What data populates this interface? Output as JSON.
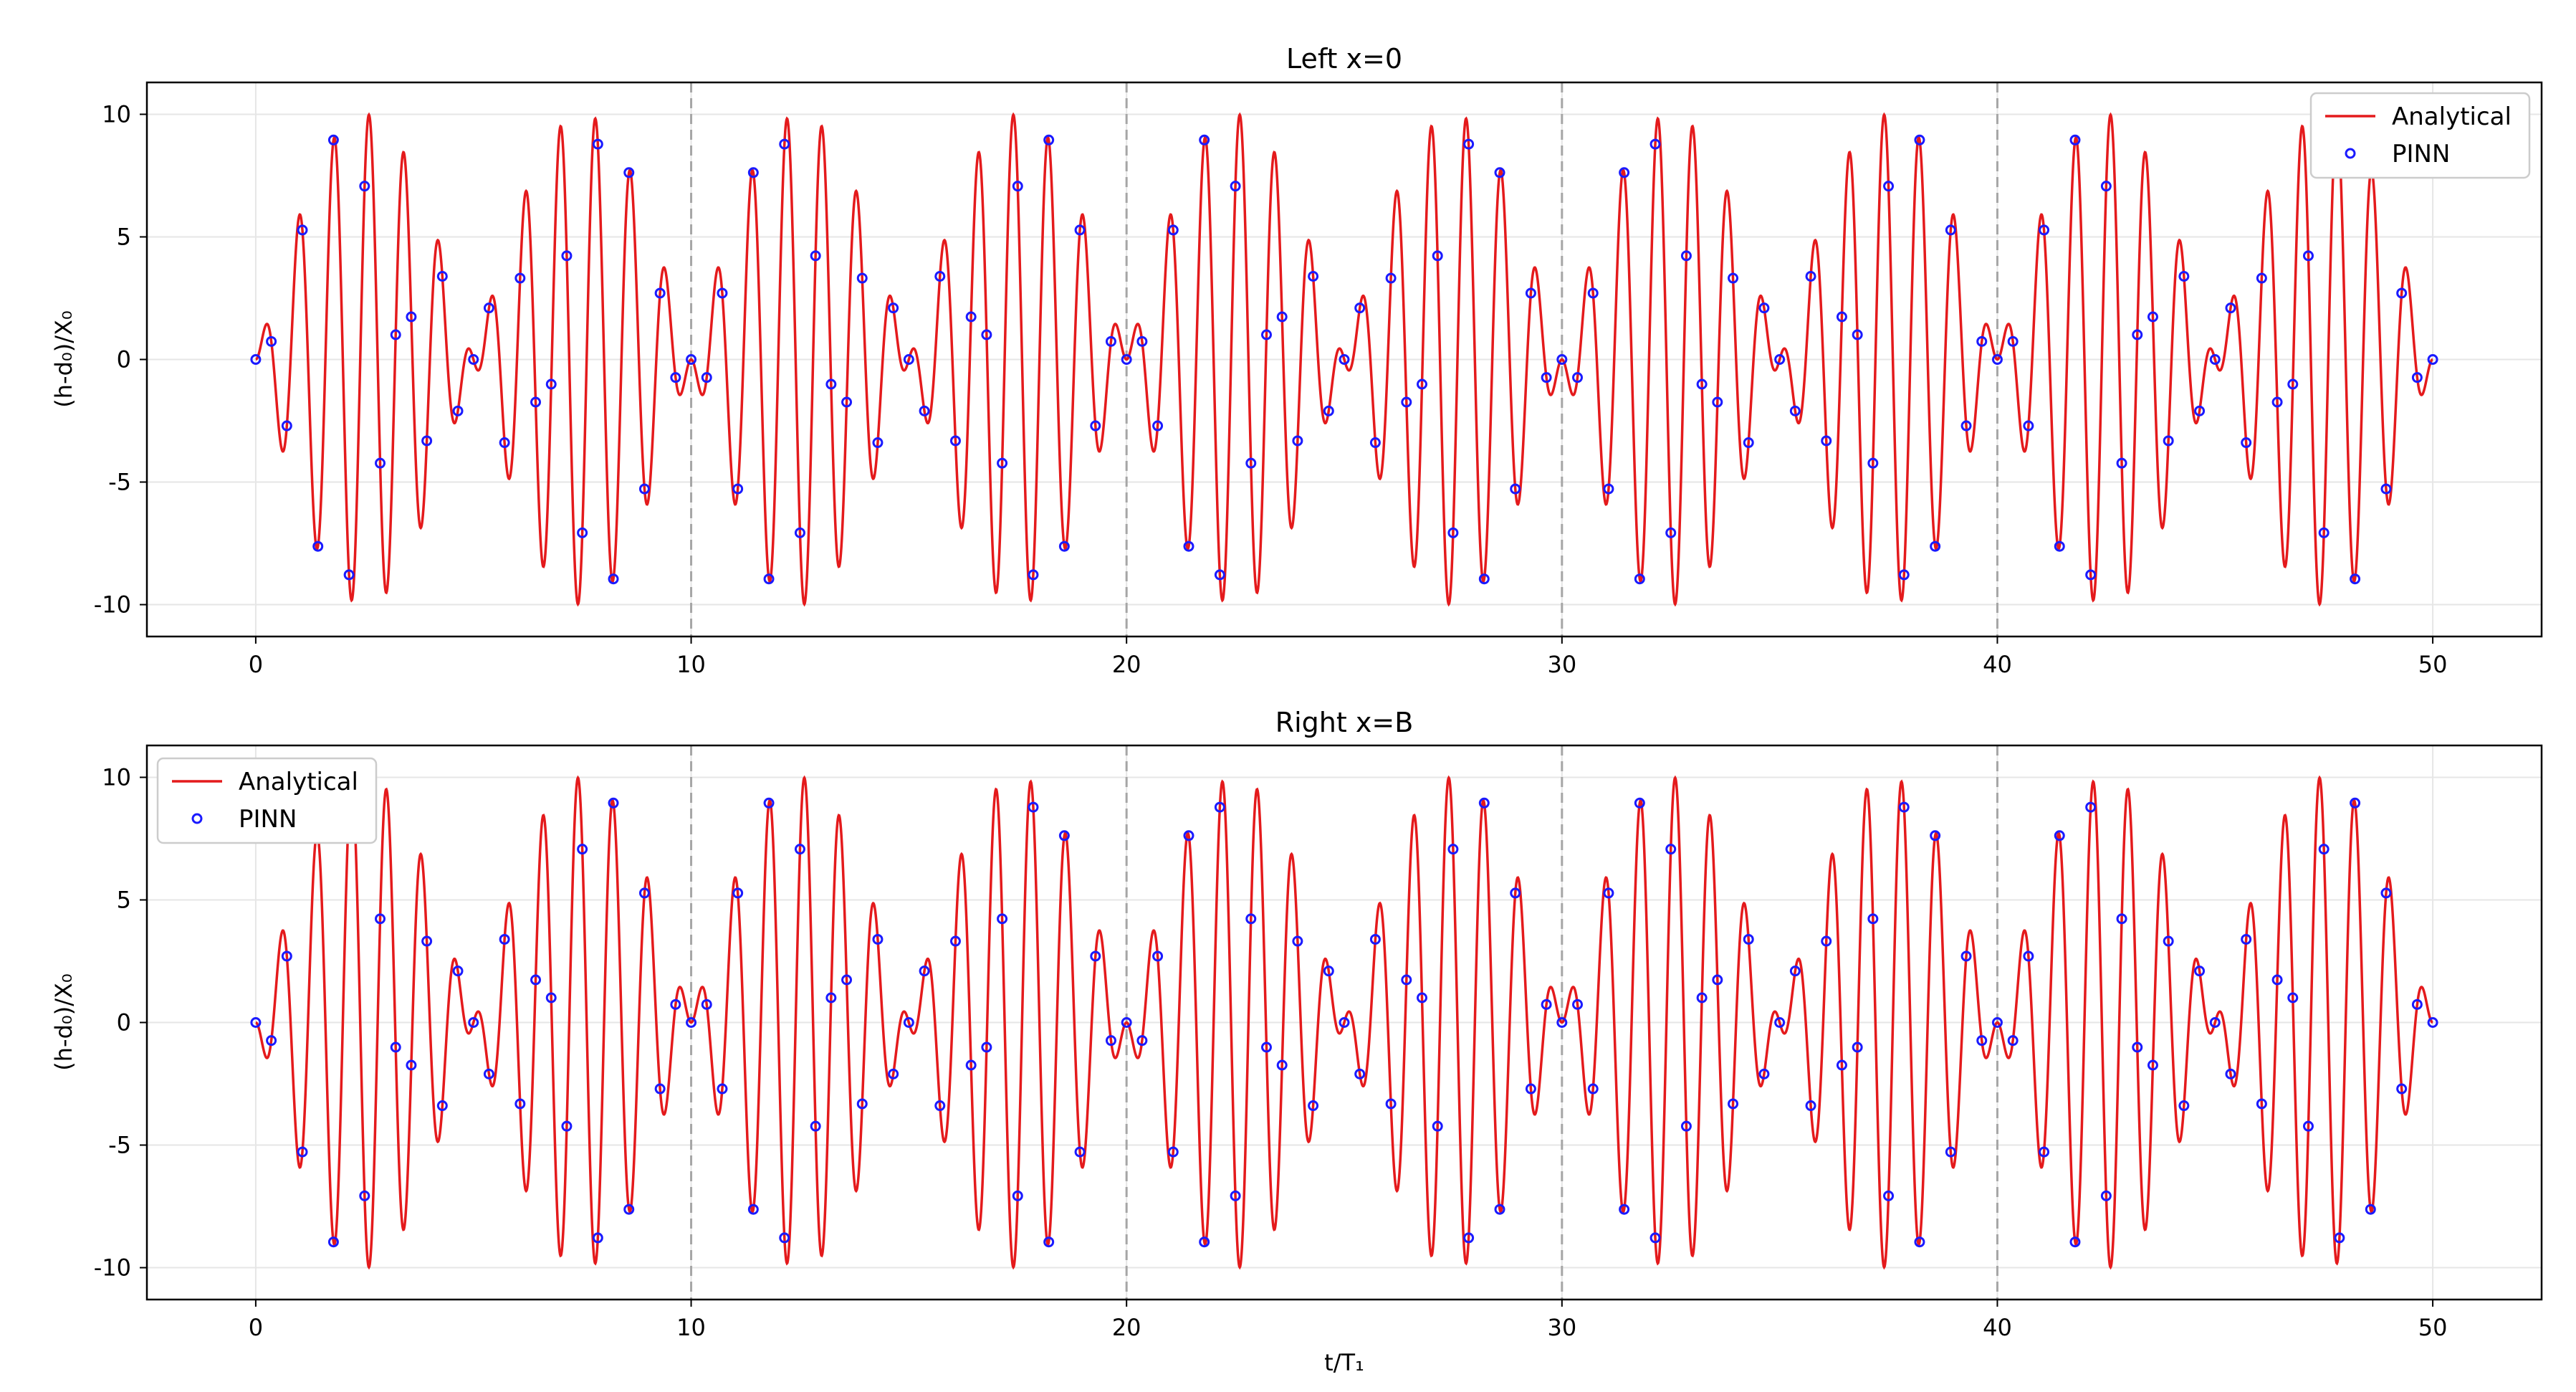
{
  "chart_data": [
    {
      "type": "line",
      "title": "Left x=0",
      "xlabel": "",
      "ylabel": "(h-d₀)/X₀",
      "xlim": [
        -2.5,
        52.5
      ],
      "ylim": [
        -11.3,
        11.3
      ],
      "xticks": [
        "0",
        "10",
        "20",
        "30",
        "40",
        "50"
      ],
      "yticks": [
        "10",
        "5",
        "0",
        "-5",
        "-10"
      ],
      "vlines": [
        10,
        20,
        30,
        40
      ],
      "grid": true,
      "legend": "top-right",
      "series": [
        {
          "name": "Analytical",
          "style": "line",
          "color": "#e41a1c",
          "formula": "10*sin(2*pi*t/10)*sin(2*pi*1.25*t) for t in [0, 50]"
        },
        {
          "name": "PINN",
          "style": "markers",
          "color": "#1a1aff",
          "x_step": 0.3571,
          "x_start": 0.0,
          "x_end": 50.0,
          "sampled_from": "Analytical"
        }
      ]
    },
    {
      "type": "line",
      "title": "Right x=B",
      "xlabel": "t/T₁",
      "ylabel": "(h-d₀)/X₀",
      "xlim": [
        -2.5,
        52.5
      ],
      "ylim": [
        -11.3,
        11.3
      ],
      "xticks": [
        "0",
        "10",
        "20",
        "30",
        "40",
        "50"
      ],
      "yticks": [
        "10",
        "5",
        "0",
        "-5",
        "-10"
      ],
      "vlines": [
        10,
        20,
        30,
        40
      ],
      "grid": true,
      "legend": "top-left",
      "series": [
        {
          "name": "Analytical",
          "style": "line",
          "color": "#e41a1c",
          "formula": "-10*sin(2*pi*t/10)*sin(2*pi*1.25*t) for t in [0, 50]"
        },
        {
          "name": "PINN",
          "style": "markers",
          "color": "#1a1aff",
          "x_step": 0.3571,
          "x_start": 0.0,
          "x_end": 50.0,
          "sampled_from": "Analytical"
        }
      ]
    }
  ]
}
